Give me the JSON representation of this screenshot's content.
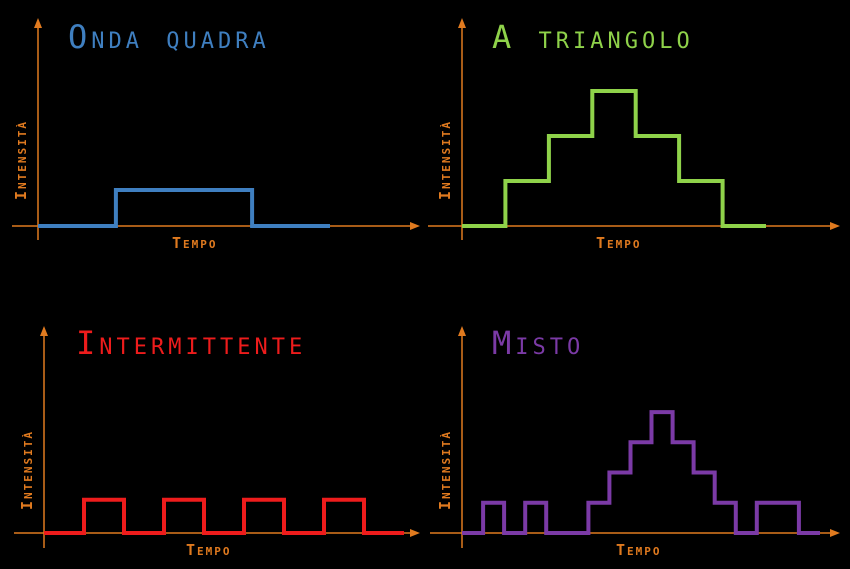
{
  "colors": {
    "axis": "#e07a1f",
    "background": "#000000"
  },
  "panels": [
    {
      "id": "onda-quadra",
      "title": "Onda quadra",
      "color": "#3f7fc0",
      "ylabel": "Intensità",
      "xlabel": "Tempo",
      "levels": [
        0,
        0,
        0,
        0,
        1,
        1,
        1,
        1,
        1,
        1,
        1,
        0,
        0,
        0,
        0
      ],
      "ymax": 4
    },
    {
      "id": "a-triangolo",
      "title": "A triangolo",
      "color": "#8fd24a",
      "ylabel": "Intensità",
      "xlabel": "Tempo",
      "levels": [
        0,
        0,
        1,
        1,
        2,
        2,
        3,
        3,
        2,
        2,
        1,
        1,
        0,
        0
      ],
      "ymax": 3.2
    },
    {
      "id": "intermittente",
      "title": "Intermittente",
      "color": "#ee1c1c",
      "ylabel": "Intensità",
      "xlabel": "Tempo",
      "levels": [
        0,
        0,
        1,
        1,
        0,
        0,
        1,
        1,
        0,
        0,
        1,
        1,
        0,
        0,
        1,
        1,
        0,
        0
      ],
      "ymax": 4
    },
    {
      "id": "misto",
      "title": "Misto",
      "color": "#7b3aa6",
      "ylabel": "Intensità",
      "xlabel": "Tempo",
      "levels": [
        0,
        1,
        0,
        1,
        0,
        0,
        1,
        2,
        3,
        4,
        3,
        2,
        1,
        0,
        1,
        1,
        0
      ],
      "ymax": 4.4
    }
  ]
}
